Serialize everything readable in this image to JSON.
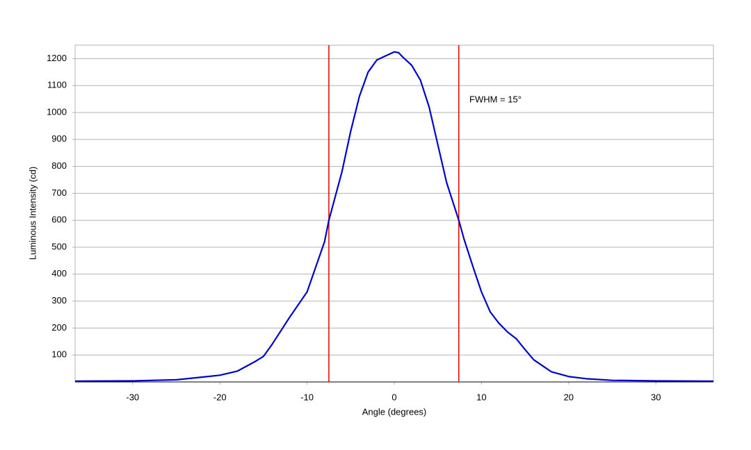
{
  "chart_data": {
    "type": "line",
    "xlabel": "Angle (degrees)",
    "ylabel": "Luminous Intensity (cd)",
    "annotation": "FWHM = 15°",
    "x": [
      -36.6,
      -30,
      -25,
      -22,
      -20,
      -18,
      -16,
      -15,
      -14,
      -12,
      -10,
      -8,
      -7.5,
      -6,
      -5,
      -4,
      -3,
      -2,
      -1,
      0,
      0.5,
      1,
      2,
      3,
      4,
      5,
      6,
      7.4,
      8,
      9,
      10,
      11,
      12,
      13,
      14,
      15,
      16,
      17,
      18,
      20,
      22,
      25,
      30,
      36.6
    ],
    "series": [
      {
        "color": "#0000cc",
        "values": [
          3,
          4,
          8,
          18,
          25,
          40,
          75,
          95,
          140,
          240,
          334,
          520,
          600,
          780,
          930,
          1060,
          1150,
          1195,
          1210,
          1225,
          1222,
          1205,
          1175,
          1120,
          1020,
          880,
          740,
          600,
          530,
          430,
          334,
          260,
          218,
          185,
          160,
          120,
          82,
          60,
          38,
          20,
          12,
          6,
          4,
          3
        ]
      }
    ],
    "vlines": [
      -7.5,
      7.4
    ],
    "vline_color": "#e00000",
    "xlim": [
      -36.6,
      36.6
    ],
    "ylim": [
      0,
      1250
    ],
    "xticks": [
      -30,
      -20,
      -10,
      0,
      10,
      20,
      30
    ],
    "yticks": [
      100,
      200,
      300,
      400,
      500,
      600,
      700,
      800,
      900,
      1000,
      1100,
      1200
    ],
    "grid": true
  }
}
